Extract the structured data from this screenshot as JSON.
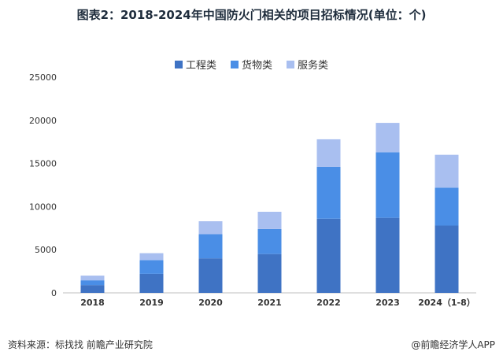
{
  "title": "图表2：2018-2024年中国防火门相关的项目招标情况(单位：个)",
  "legend": [
    {
      "name": "工程类",
      "color": "#3f73c4"
    },
    {
      "name": "货物类",
      "color": "#4a8ee6"
    },
    {
      "name": "服务类",
      "color": "#a9bff0"
    }
  ],
  "footer": {
    "source": "资料来源：标找找 前瞻产业研究院",
    "credit": "@前瞻经济学人APP"
  },
  "chart_data": {
    "type": "bar",
    "stacked": true,
    "categories": [
      "2018",
      "2019",
      "2020",
      "2021",
      "2022",
      "2023",
      "2024（1-8）"
    ],
    "series": [
      {
        "name": "工程类",
        "color": "#3f73c4",
        "values": [
          900,
          2200,
          4000,
          4500,
          8600,
          8700,
          7800
        ]
      },
      {
        "name": "货物类",
        "color": "#4a8ee6",
        "values": [
          550,
          1600,
          2800,
          2900,
          6000,
          7600,
          4400
        ]
      },
      {
        "name": "服务类",
        "color": "#a9bff0",
        "values": [
          550,
          800,
          1500,
          2000,
          3200,
          3400,
          3800
        ]
      }
    ],
    "ylim": [
      0,
      25000
    ],
    "yticks": [
      0,
      5000,
      10000,
      15000,
      20000,
      25000
    ],
    "grid": false,
    "legend_position": "top-center"
  }
}
